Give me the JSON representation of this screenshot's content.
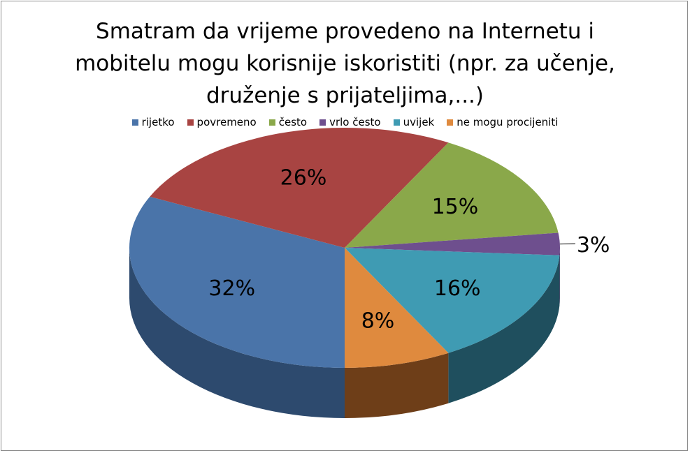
{
  "chart_data": {
    "type": "pie",
    "title_lines": [
      "Smatram da vrijeme provedeno na Internetu i",
      "mobitelu mogu korisnije iskoristiti (npr. za učenje,",
      "druženje s prijateljima,...)"
    ],
    "categories": [
      "rijetko",
      "povremeno",
      "često",
      "vrlo često",
      "uvijek",
      "ne mogu procijeniti"
    ],
    "values": [
      32,
      26,
      15,
      3,
      16,
      8
    ],
    "labels": [
      "32%",
      "26%",
      "15%",
      "3%",
      "16%",
      "8%"
    ],
    "colors": [
      "#4a74a9",
      "#a84442",
      "#8aa84a",
      "#6e4f8e",
      "#3f9bb3",
      "#df8a3e"
    ],
    "side_colors": [
      "#2d4a6e",
      "#6e2c2b",
      "#5a6e30",
      "#483463",
      "#1f4f5e",
      "#6e3e18"
    ],
    "legend_placement": "top",
    "three_d": true
  }
}
